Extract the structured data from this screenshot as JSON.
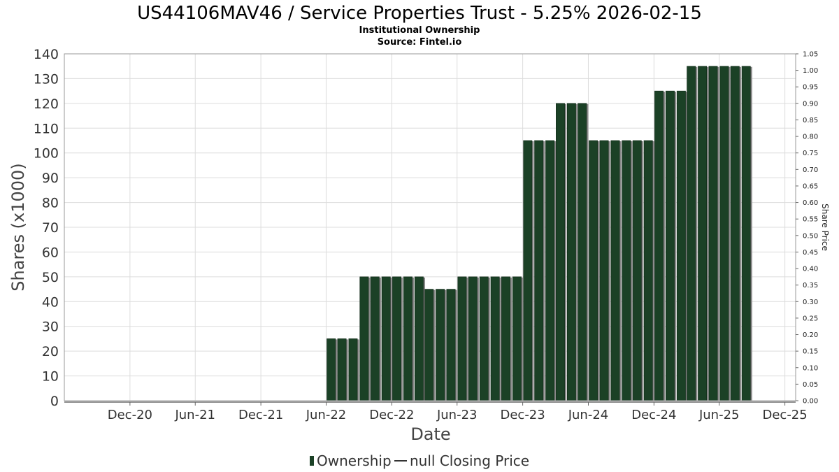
{
  "chart_data": {
    "type": "bar",
    "title": "US44106MAV46 / Service Properties Trust - 5.25% 2026-02-15",
    "subtitle_lines": [
      "Institutional Ownership",
      "Source: Fintel.io"
    ],
    "xlabel": "Date",
    "ylabel": "Shares (x1000)",
    "y2label": "Share Price",
    "ylim": [
      0,
      140
    ],
    "y_ticks": [
      0,
      10,
      20,
      30,
      40,
      50,
      60,
      70,
      80,
      90,
      100,
      110,
      120,
      130,
      140
    ],
    "y2lim": [
      0,
      1.05
    ],
    "y2_ticks": [
      "0.00",
      "0.05",
      "0.10",
      "0.15",
      "0.20",
      "0.25",
      "0.30",
      "0.35",
      "0.40",
      "0.45",
      "0.50",
      "0.55",
      "0.60",
      "0.65",
      "0.70",
      "0.75",
      "0.80",
      "0.85",
      "0.90",
      "0.95",
      "1.00",
      "1.05"
    ],
    "x_range": [
      "2020-06-01",
      "2025-12-31"
    ],
    "x_ticks": [
      {
        "label": "Dec-20",
        "date": "2020-12-01"
      },
      {
        "label": "Jun-21",
        "date": "2021-06-01"
      },
      {
        "label": "Dec-21",
        "date": "2021-12-01"
      },
      {
        "label": "Jun-22",
        "date": "2022-06-01"
      },
      {
        "label": "Dec-22",
        "date": "2022-12-01"
      },
      {
        "label": "Jun-23",
        "date": "2023-06-01"
      },
      {
        "label": "Dec-23",
        "date": "2023-12-01"
      },
      {
        "label": "Jun-24",
        "date": "2024-06-01"
      },
      {
        "label": "Dec-24",
        "date": "2024-12-01"
      },
      {
        "label": "Jun-25",
        "date": "2025-06-01"
      },
      {
        "label": "Dec-25",
        "date": "2025-12-01"
      }
    ],
    "grid": true,
    "legend_position": "bottom-center",
    "series": [
      {
        "name": "Ownership",
        "color": "#1b4126",
        "points": [
          {
            "date": "2022-06-15",
            "value": 25
          },
          {
            "date": "2022-07-15",
            "value": 25
          },
          {
            "date": "2022-08-15",
            "value": 25
          },
          {
            "date": "2022-09-15",
            "value": 50
          },
          {
            "date": "2022-10-15",
            "value": 50
          },
          {
            "date": "2022-11-15",
            "value": 50
          },
          {
            "date": "2022-12-15",
            "value": 50
          },
          {
            "date": "2023-01-15",
            "value": 50
          },
          {
            "date": "2023-02-15",
            "value": 50
          },
          {
            "date": "2023-03-15",
            "value": 45
          },
          {
            "date": "2023-04-15",
            "value": 45
          },
          {
            "date": "2023-05-15",
            "value": 45
          },
          {
            "date": "2023-06-15",
            "value": 50
          },
          {
            "date": "2023-07-15",
            "value": 50
          },
          {
            "date": "2023-08-15",
            "value": 50
          },
          {
            "date": "2023-09-15",
            "value": 50
          },
          {
            "date": "2023-10-15",
            "value": 50
          },
          {
            "date": "2023-11-15",
            "value": 50
          },
          {
            "date": "2023-12-15",
            "value": 105
          },
          {
            "date": "2024-01-15",
            "value": 105
          },
          {
            "date": "2024-02-15",
            "value": 105
          },
          {
            "date": "2024-03-15",
            "value": 120
          },
          {
            "date": "2024-04-15",
            "value": 120
          },
          {
            "date": "2024-05-15",
            "value": 120
          },
          {
            "date": "2024-06-15",
            "value": 105
          },
          {
            "date": "2024-07-15",
            "value": 105
          },
          {
            "date": "2024-08-15",
            "value": 105
          },
          {
            "date": "2024-09-15",
            "value": 105
          },
          {
            "date": "2024-10-15",
            "value": 105
          },
          {
            "date": "2024-11-15",
            "value": 105
          },
          {
            "date": "2024-12-15",
            "value": 125
          },
          {
            "date": "2025-01-15",
            "value": 125
          },
          {
            "date": "2025-02-15",
            "value": 125
          },
          {
            "date": "2025-03-15",
            "value": 135
          },
          {
            "date": "2025-04-15",
            "value": 135
          },
          {
            "date": "2025-05-15",
            "value": 135
          },
          {
            "date": "2025-06-15",
            "value": 135
          },
          {
            "date": "2025-07-15",
            "value": 135
          },
          {
            "date": "2025-08-15",
            "value": 135
          }
        ]
      },
      {
        "name": "null Closing Price",
        "color": "#333333",
        "points": []
      }
    ]
  }
}
